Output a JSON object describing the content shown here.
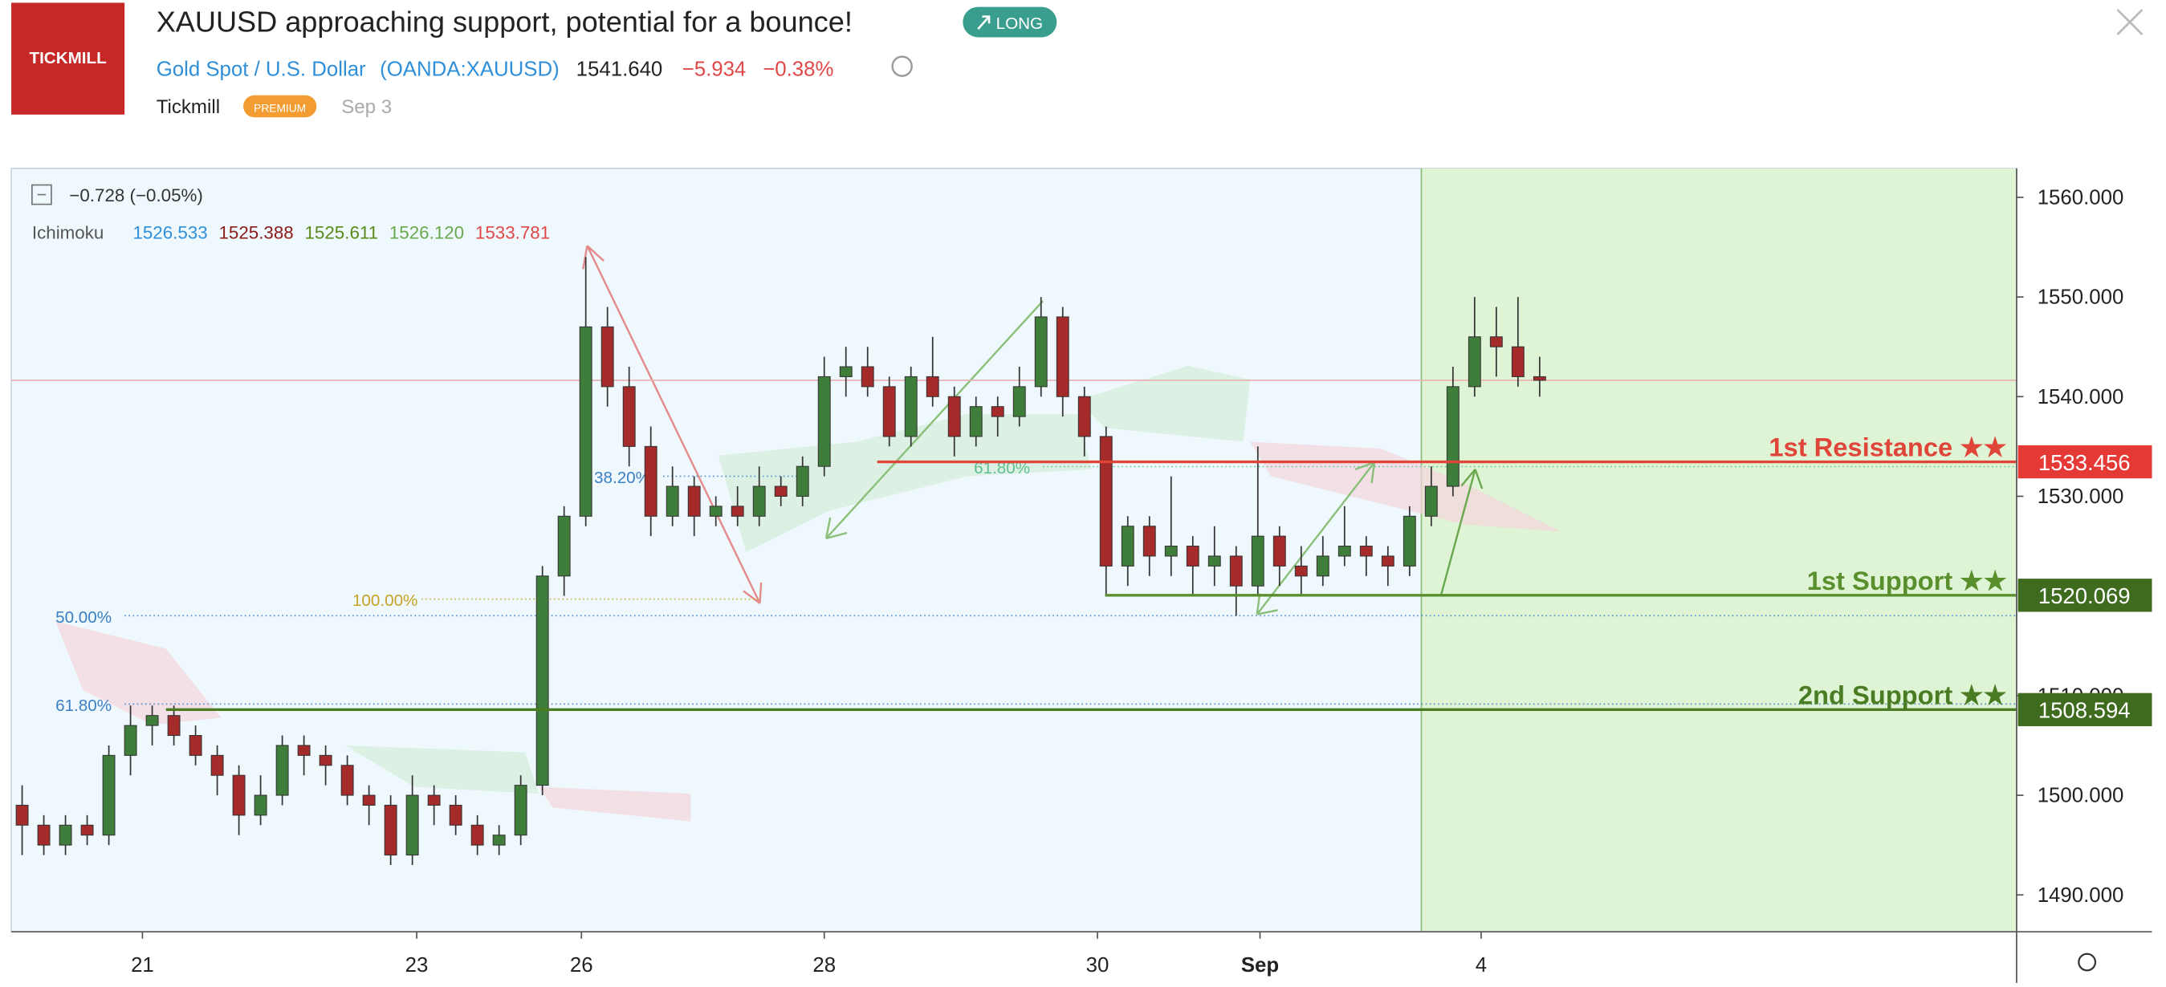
{
  "header": {
    "logo": "TICKMILL",
    "title": "XAUUSD approaching support, potential for a bounce!",
    "badge": "LONG",
    "symbol_name": "Gold Spot / U.S. Dollar",
    "symbol_code": "(OANDA:XAUUSD)",
    "last": "1541.640",
    "change": "−5.934",
    "change_pct": "−0.38%",
    "author": "Tickmill",
    "author_badge": "PREMIUM",
    "date": "Sep 3"
  },
  "legend": {
    "change": "−0.728 (−0.05%)",
    "indicator": "Ichimoku",
    "values": [
      "1526.533",
      "1525.388",
      "1525.611",
      "1526.120",
      "1533.781"
    ],
    "colors": [
      "#2f8fd8",
      "#8b1a1a",
      "#5a8a1a",
      "#6aa84f",
      "#e04848"
    ]
  },
  "chart_data": {
    "type": "candlestick",
    "xlim": [
      -0.5,
      92
    ],
    "ylim": [
      1486.3,
      1562.9
    ],
    "xticks": [
      {
        "value": 5.55,
        "label": "21"
      },
      {
        "value": 18.2,
        "label": "23"
      },
      {
        "value": 25.8,
        "label": "26"
      },
      {
        "value": 37.0,
        "label": "28"
      },
      {
        "value": 49.6,
        "label": "30"
      },
      {
        "value": 57.1,
        "label": "Sep"
      },
      {
        "value": 67.3,
        "label": "4"
      }
    ],
    "yticks": [
      {
        "value": 1490,
        "label": "1490.000"
      },
      {
        "value": 1500,
        "label": "1500.000"
      },
      {
        "value": 1510,
        "label": "1510.000"
      },
      {
        "value": 1530,
        "label": "1530.000"
      },
      {
        "value": 1540,
        "label": "1540.000"
      },
      {
        "value": 1550,
        "label": "1550.000"
      },
      {
        "value": 1560,
        "label": "1560.000"
      }
    ],
    "up_color": "#3f7d3a",
    "down_color": "#a52a2a",
    "last_price": 1541.64,
    "candles": [
      [
        1499,
        1501,
        1494,
        1497
      ],
      [
        1497,
        1498,
        1494,
        1495
      ],
      [
        1495,
        1498,
        1494,
        1497
      ],
      [
        1497,
        1498,
        1495,
        1496
      ],
      [
        1496,
        1505,
        1495,
        1504
      ],
      [
        1504,
        1509,
        1502,
        1507
      ],
      [
        1507,
        1509,
        1505,
        1508
      ],
      [
        1508,
        1509,
        1505,
        1506
      ],
      [
        1506,
        1507,
        1503,
        1504
      ],
      [
        1504,
        1505,
        1500,
        1502
      ],
      [
        1502,
        1503,
        1496,
        1498
      ],
      [
        1498,
        1502,
        1497,
        1500
      ],
      [
        1500,
        1506,
        1499,
        1505
      ],
      [
        1505,
        1506,
        1502,
        1504
      ],
      [
        1504,
        1505,
        1501,
        1503
      ],
      [
        1503,
        1504,
        1499,
        1500
      ],
      [
        1500,
        1501,
        1497,
        1499
      ],
      [
        1499,
        1500,
        1493,
        1494
      ],
      [
        1494,
        1502,
        1493,
        1500
      ],
      [
        1500,
        1501,
        1497,
        1499
      ],
      [
        1499,
        1500,
        1496,
        1497
      ],
      [
        1497,
        1498,
        1494,
        1495
      ],
      [
        1495,
        1497,
        1494,
        1496
      ],
      [
        1496,
        1502,
        1495,
        1501
      ],
      [
        1501,
        1523,
        1500,
        1522
      ],
      [
        1522,
        1529,
        1520,
        1528
      ],
      [
        1528,
        1554,
        1527,
        1547
      ],
      [
        1547,
        1549,
        1539,
        1541
      ],
      [
        1541,
        1543,
        1533,
        1535
      ],
      [
        1535,
        1537,
        1526,
        1528
      ],
      [
        1528,
        1533,
        1527,
        1531
      ],
      [
        1531,
        1532,
        1526,
        1528
      ],
      [
        1528,
        1530,
        1527,
        1529
      ],
      [
        1529,
        1531,
        1527,
        1528
      ],
      [
        1528,
        1533,
        1527,
        1531
      ],
      [
        1531,
        1532,
        1529,
        1530
      ],
      [
        1530,
        1534,
        1529,
        1533
      ],
      [
        1533,
        1544,
        1532,
        1542
      ],
      [
        1542,
        1545,
        1540,
        1543
      ],
      [
        1543,
        1545,
        1540,
        1541
      ],
      [
        1541,
        1542,
        1535,
        1536
      ],
      [
        1536,
        1543,
        1535,
        1542
      ],
      [
        1542,
        1546,
        1539,
        1540
      ],
      [
        1540,
        1541,
        1534,
        1536
      ],
      [
        1536,
        1540,
        1535,
        1539
      ],
      [
        1539,
        1540,
        1536,
        1538
      ],
      [
        1538,
        1543,
        1537,
        1541
      ],
      [
        1541,
        1550,
        1540,
        1548
      ],
      [
        1548,
        1549,
        1538,
        1540
      ],
      [
        1540,
        1541,
        1534,
        1536
      ],
      [
        1536,
        1537,
        1520,
        1523
      ],
      [
        1523,
        1528,
        1521,
        1527
      ],
      [
        1527,
        1528,
        1522,
        1524
      ],
      [
        1524,
        1532,
        1522,
        1525
      ],
      [
        1525,
        1526,
        1520,
        1523
      ],
      [
        1523,
        1527,
        1521,
        1524
      ],
      [
        1524,
        1525,
        1518,
        1521
      ],
      [
        1521,
        1535,
        1520,
        1526
      ],
      [
        1526,
        1527,
        1521,
        1523
      ],
      [
        1523,
        1525,
        1520,
        1522
      ],
      [
        1522,
        1526,
        1521,
        1524
      ],
      [
        1524,
        1529,
        1523,
        1525
      ],
      [
        1525,
        1526,
        1522,
        1524
      ],
      [
        1524,
        1525,
        1521,
        1523
      ],
      [
        1523,
        1529,
        1522,
        1528
      ],
      [
        1528,
        1533,
        1527,
        1531
      ],
      [
        1531,
        1543,
        1530,
        1541
      ],
      [
        1541,
        1550,
        1540,
        1546
      ],
      [
        1546,
        1549,
        1542,
        1545
      ],
      [
        1545,
        1550,
        1541,
        1542
      ],
      [
        1542,
        1544,
        1540,
        1541.64
      ]
    ],
    "levels": [
      {
        "name": "1st Resistance ★★",
        "value": 1533.456,
        "color": "#e0453a"
      },
      {
        "name": "1st Support ★★",
        "value": 1520.069,
        "color": "#5a8f2e"
      },
      {
        "name": "2nd Support ★★",
        "value": 1508.594,
        "color": "#4a7c24"
      }
    ],
    "fib_labels": [
      "38.20%",
      "61.80%",
      "100.00%",
      "50.00%",
      "61.80%"
    ]
  }
}
